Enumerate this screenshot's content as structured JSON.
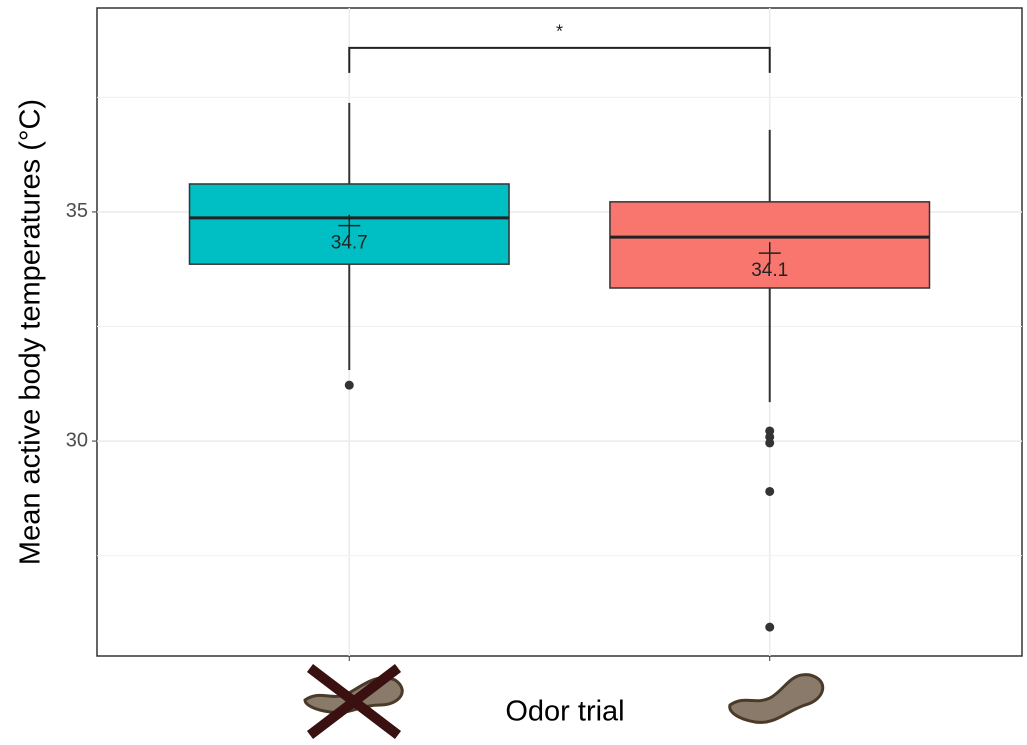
{
  "chart_data": {
    "type": "boxplot",
    "ylabel": "Mean active body temperatures (°C)",
    "xlabel": "Odor trial",
    "categories": [
      null,
      null
    ],
    "boxes": [
      {
        "color": "#00bfc4",
        "whisker_low": 31.55,
        "q1": 33.86,
        "median": 34.87,
        "q3": 35.61,
        "whisker_high": 37.38,
        "mean": 34.7,
        "outliers": [
          31.22
        ]
      },
      {
        "color": "#f8766d",
        "whisker_low": 30.85,
        "q1": 33.34,
        "median": 34.45,
        "q3": 35.22,
        "whisker_high": 36.79,
        "mean": 34.1,
        "outliers": [
          30.22,
          30.09,
          29.96,
          28.9,
          25.94
        ]
      }
    ],
    "annotations": [
      {
        "text": "*"
      }
    ],
    "ylim": [
      25.31,
      39.45
    ],
    "yticks": [
      30,
      35
    ],
    "minor_yticks": [
      27.5,
      32.5,
      37.5
    ],
    "grid": true
  }
}
